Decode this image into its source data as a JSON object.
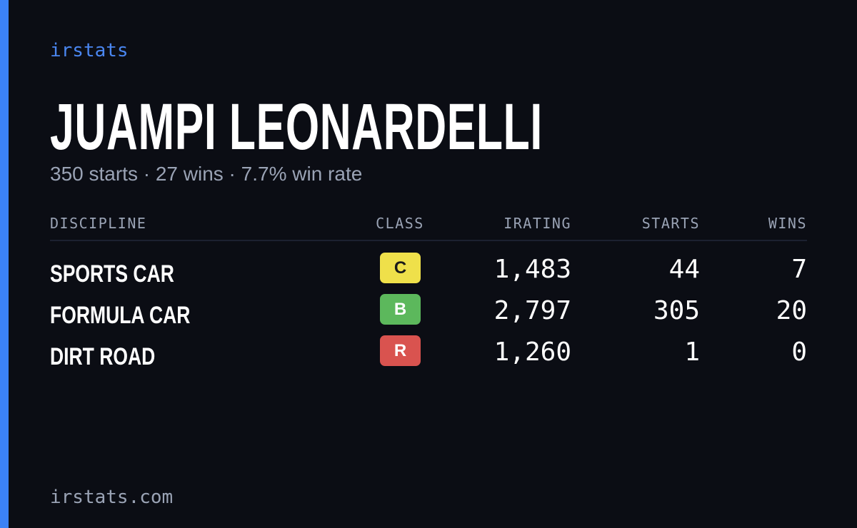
{
  "brand": "irstats",
  "title": "JUAMPI LEONARDELLI",
  "subtitle": "350 starts · 27 wins · 7.7% win rate",
  "table": {
    "headers": [
      "DISCIPLINE",
      "CLASS",
      "IRATING",
      "STARTS",
      "WINS"
    ],
    "rows": [
      {
        "discipline": "SPORTS CAR",
        "class": "C",
        "class_color": "#efe04a",
        "class_text_color": "#1a1a1a",
        "irating": "1,483",
        "starts": "44",
        "wins": "7"
      },
      {
        "discipline": "FORMULA CAR",
        "class": "B",
        "class_color": "#5cb85c",
        "class_text_color": "#ffffff",
        "irating": "2,797",
        "starts": "305",
        "wins": "20"
      },
      {
        "discipline": "DIRT ROAD",
        "class": "R",
        "class_color": "#d9534f",
        "class_text_color": "#ffffff",
        "irating": "1,260",
        "starts": "1",
        "wins": "0"
      }
    ]
  },
  "footer": "irstats.com"
}
